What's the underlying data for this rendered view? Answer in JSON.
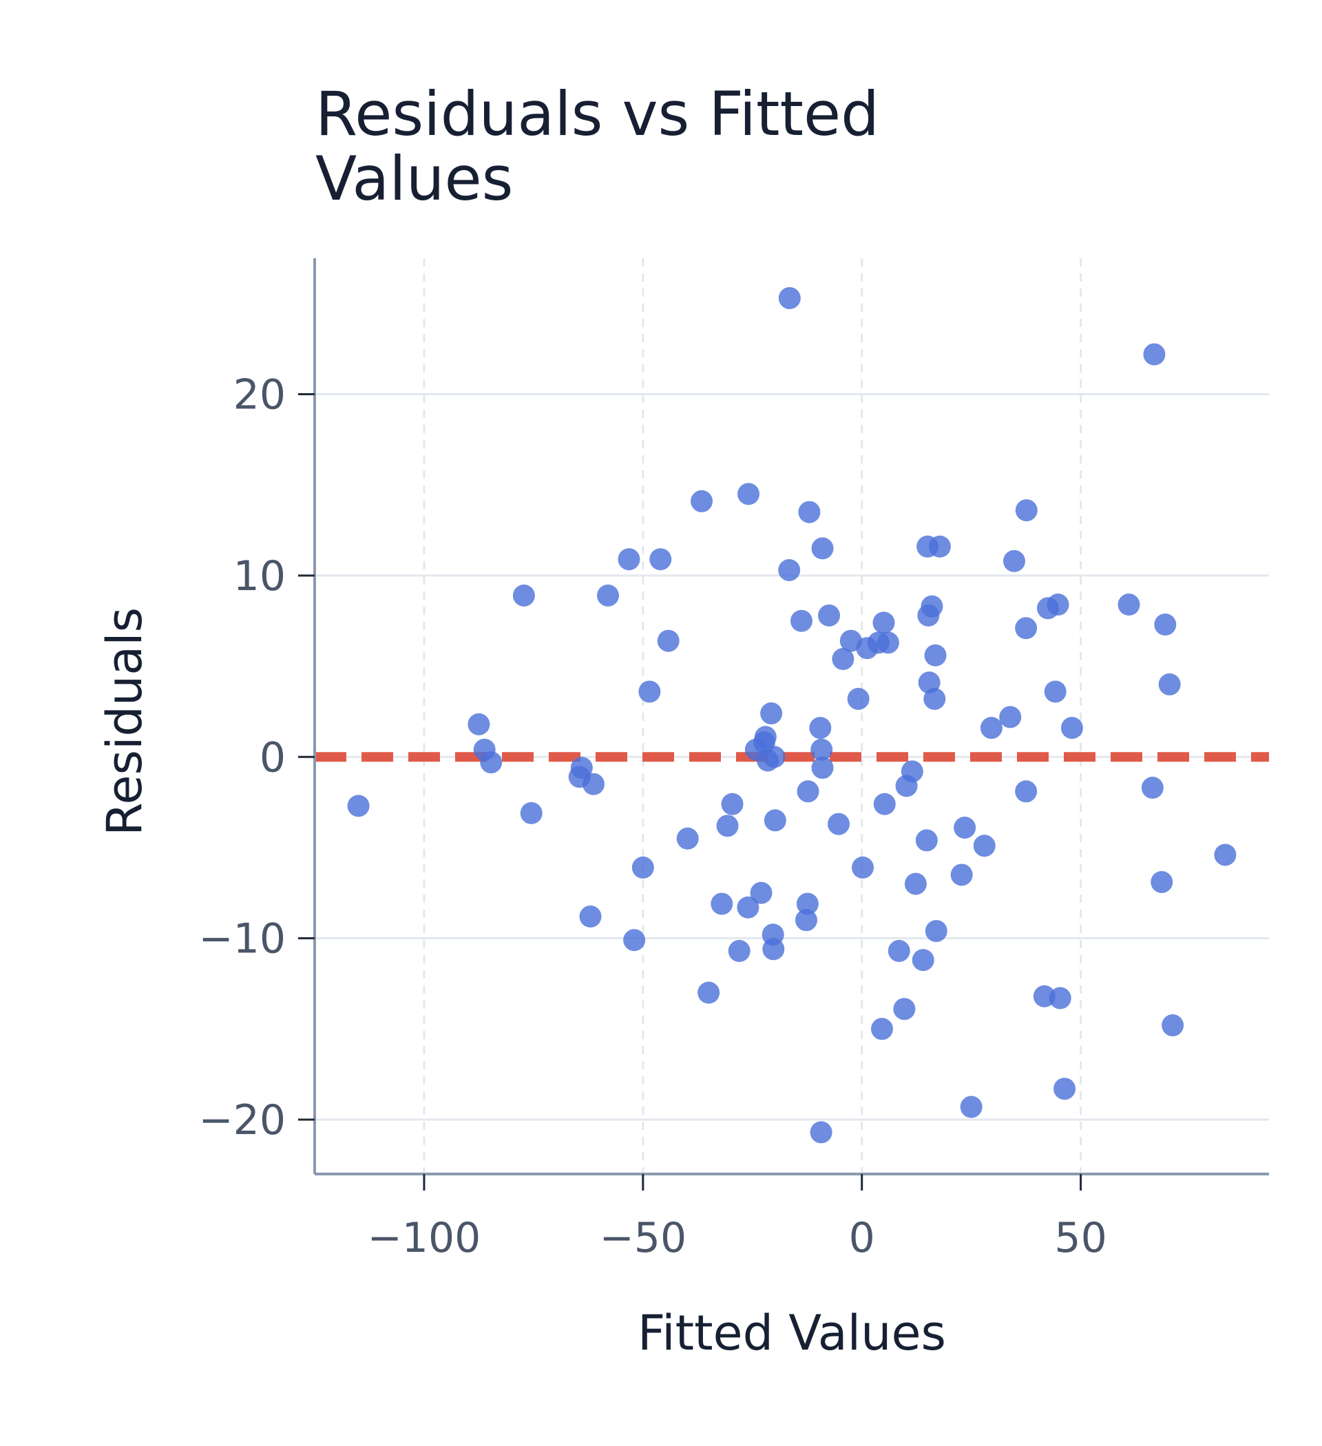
{
  "chart_data": {
    "type": "scatter",
    "title": "Residuals vs Fitted Values",
    "title_lines": [
      "Residuals vs Fitted",
      "Values"
    ],
    "xlabel": "Fitted Values",
    "ylabel": "Residuals",
    "xlim": [
      -125,
      93
    ],
    "ylim": [
      -23,
      27.5
    ],
    "xticks": [
      -100,
      -50,
      0,
      50
    ],
    "yticks": [
      -20,
      -10,
      0,
      10,
      20
    ],
    "xtick_labels": [
      "−100",
      "−50",
      "0",
      "50"
    ],
    "ytick_labels": [
      "−20",
      "−10",
      "0",
      "10",
      "20"
    ],
    "grid": true,
    "reference_line": {
      "y": 0,
      "style": "dashed",
      "color": "#e05a4a"
    },
    "colors": {
      "points": "#4a6fd8",
      "axis": "#8a99ad",
      "grid": "#e3e8ef"
    },
    "points": [
      {
        "x": -115.0,
        "y": -2.7
      },
      {
        "x": -87.5,
        "y": 1.8
      },
      {
        "x": -86.2,
        "y": 0.4
      },
      {
        "x": -84.7,
        "y": -0.3
      },
      {
        "x": -77.2,
        "y": 8.9
      },
      {
        "x": -75.5,
        "y": -3.1
      },
      {
        "x": -64.0,
        "y": -0.6
      },
      {
        "x": -64.5,
        "y": -1.1
      },
      {
        "x": -61.3,
        "y": -1.5
      },
      {
        "x": -62.0,
        "y": -8.8
      },
      {
        "x": -58.0,
        "y": 8.9
      },
      {
        "x": -53.2,
        "y": 10.9
      },
      {
        "x": -52.0,
        "y": -10.1
      },
      {
        "x": -50.0,
        "y": -6.1
      },
      {
        "x": -48.5,
        "y": 3.6
      },
      {
        "x": -46.0,
        "y": 10.9
      },
      {
        "x": -44.2,
        "y": 6.4
      },
      {
        "x": -39.8,
        "y": -4.5
      },
      {
        "x": -36.6,
        "y": 14.1
      },
      {
        "x": -35.0,
        "y": -13.0
      },
      {
        "x": -32.0,
        "y": -8.1
      },
      {
        "x": -30.7,
        "y": -3.8
      },
      {
        "x": -29.6,
        "y": -2.6
      },
      {
        "x": -28.0,
        "y": -10.7
      },
      {
        "x": -26.0,
        "y": -8.3
      },
      {
        "x": -25.9,
        "y": 14.5
      },
      {
        "x": -24.2,
        "y": 0.4
      },
      {
        "x": -23.0,
        "y": -7.5
      },
      {
        "x": -22.3,
        "y": 0.8
      },
      {
        "x": -22.0,
        "y": 1.1
      },
      {
        "x": -21.5,
        "y": -0.2
      },
      {
        "x": -20.7,
        "y": 2.4
      },
      {
        "x": -20.3,
        "y": -9.8
      },
      {
        "x": -20.2,
        "y": -10.6
      },
      {
        "x": -20.0,
        "y": 0.0
      },
      {
        "x": -19.8,
        "y": -3.5
      },
      {
        "x": -16.5,
        "y": 25.3
      },
      {
        "x": -16.6,
        "y": 10.3
      },
      {
        "x": -13.8,
        "y": 7.5
      },
      {
        "x": -12.7,
        "y": -9.0
      },
      {
        "x": -12.4,
        "y": -8.1
      },
      {
        "x": -12.3,
        "y": -1.9
      },
      {
        "x": -12.0,
        "y": 13.5
      },
      {
        "x": -9.5,
        "y": 1.6
      },
      {
        "x": -9.2,
        "y": 0.4
      },
      {
        "x": -9.0,
        "y": -0.6
      },
      {
        "x": -9.0,
        "y": 11.5
      },
      {
        "x": -9.3,
        "y": -20.7
      },
      {
        "x": -7.5,
        "y": 7.8
      },
      {
        "x": -5.3,
        "y": -3.7
      },
      {
        "x": -4.3,
        "y": 5.4
      },
      {
        "x": -2.5,
        "y": 6.4
      },
      {
        "x": -0.8,
        "y": 3.2
      },
      {
        "x": 0.2,
        "y": -6.1
      },
      {
        "x": 1.2,
        "y": 6.0
      },
      {
        "x": 3.8,
        "y": 6.3
      },
      {
        "x": 4.6,
        "y": -15.0
      },
      {
        "x": 5.0,
        "y": 7.4
      },
      {
        "x": 5.2,
        "y": -2.6
      },
      {
        "x": 6.0,
        "y": 6.3
      },
      {
        "x": 8.5,
        "y": -10.7
      },
      {
        "x": 9.7,
        "y": -13.9
      },
      {
        "x": 10.2,
        "y": -1.6
      },
      {
        "x": 11.5,
        "y": -0.8
      },
      {
        "x": 12.3,
        "y": -7.0
      },
      {
        "x": 14.0,
        "y": -11.2
      },
      {
        "x": 14.8,
        "y": -4.6
      },
      {
        "x": 15.0,
        "y": 11.6
      },
      {
        "x": 15.2,
        "y": 7.8
      },
      {
        "x": 15.4,
        "y": 4.1
      },
      {
        "x": 16.0,
        "y": 8.3
      },
      {
        "x": 16.6,
        "y": 3.2
      },
      {
        "x": 16.8,
        "y": 5.6
      },
      {
        "x": 17.0,
        "y": -9.6
      },
      {
        "x": 17.8,
        "y": 11.6
      },
      {
        "x": 22.8,
        "y": -6.5
      },
      {
        "x": 23.5,
        "y": -3.9
      },
      {
        "x": 25.0,
        "y": -19.3
      },
      {
        "x": 28.0,
        "y": -4.9
      },
      {
        "x": 29.6,
        "y": 1.6
      },
      {
        "x": 33.9,
        "y": 2.2
      },
      {
        "x": 34.8,
        "y": 10.8
      },
      {
        "x": 37.5,
        "y": 7.1
      },
      {
        "x": 37.5,
        "y": -1.9
      },
      {
        "x": 37.6,
        "y": 13.6
      },
      {
        "x": 41.7,
        "y": -13.2
      },
      {
        "x": 42.5,
        "y": 8.2
      },
      {
        "x": 44.2,
        "y": 3.6
      },
      {
        "x": 44.8,
        "y": 8.4
      },
      {
        "x": 45.3,
        "y": -13.3
      },
      {
        "x": 46.3,
        "y": -18.3
      },
      {
        "x": 48.0,
        "y": 1.6
      },
      {
        "x": 61.0,
        "y": 8.4
      },
      {
        "x": 66.4,
        "y": -1.7
      },
      {
        "x": 66.8,
        "y": 22.2
      },
      {
        "x": 68.5,
        "y": -6.9
      },
      {
        "x": 69.3,
        "y": 7.3
      },
      {
        "x": 70.3,
        "y": 4.0
      },
      {
        "x": 71.0,
        "y": -14.8
      },
      {
        "x": 83.0,
        "y": -5.4
      }
    ]
  }
}
